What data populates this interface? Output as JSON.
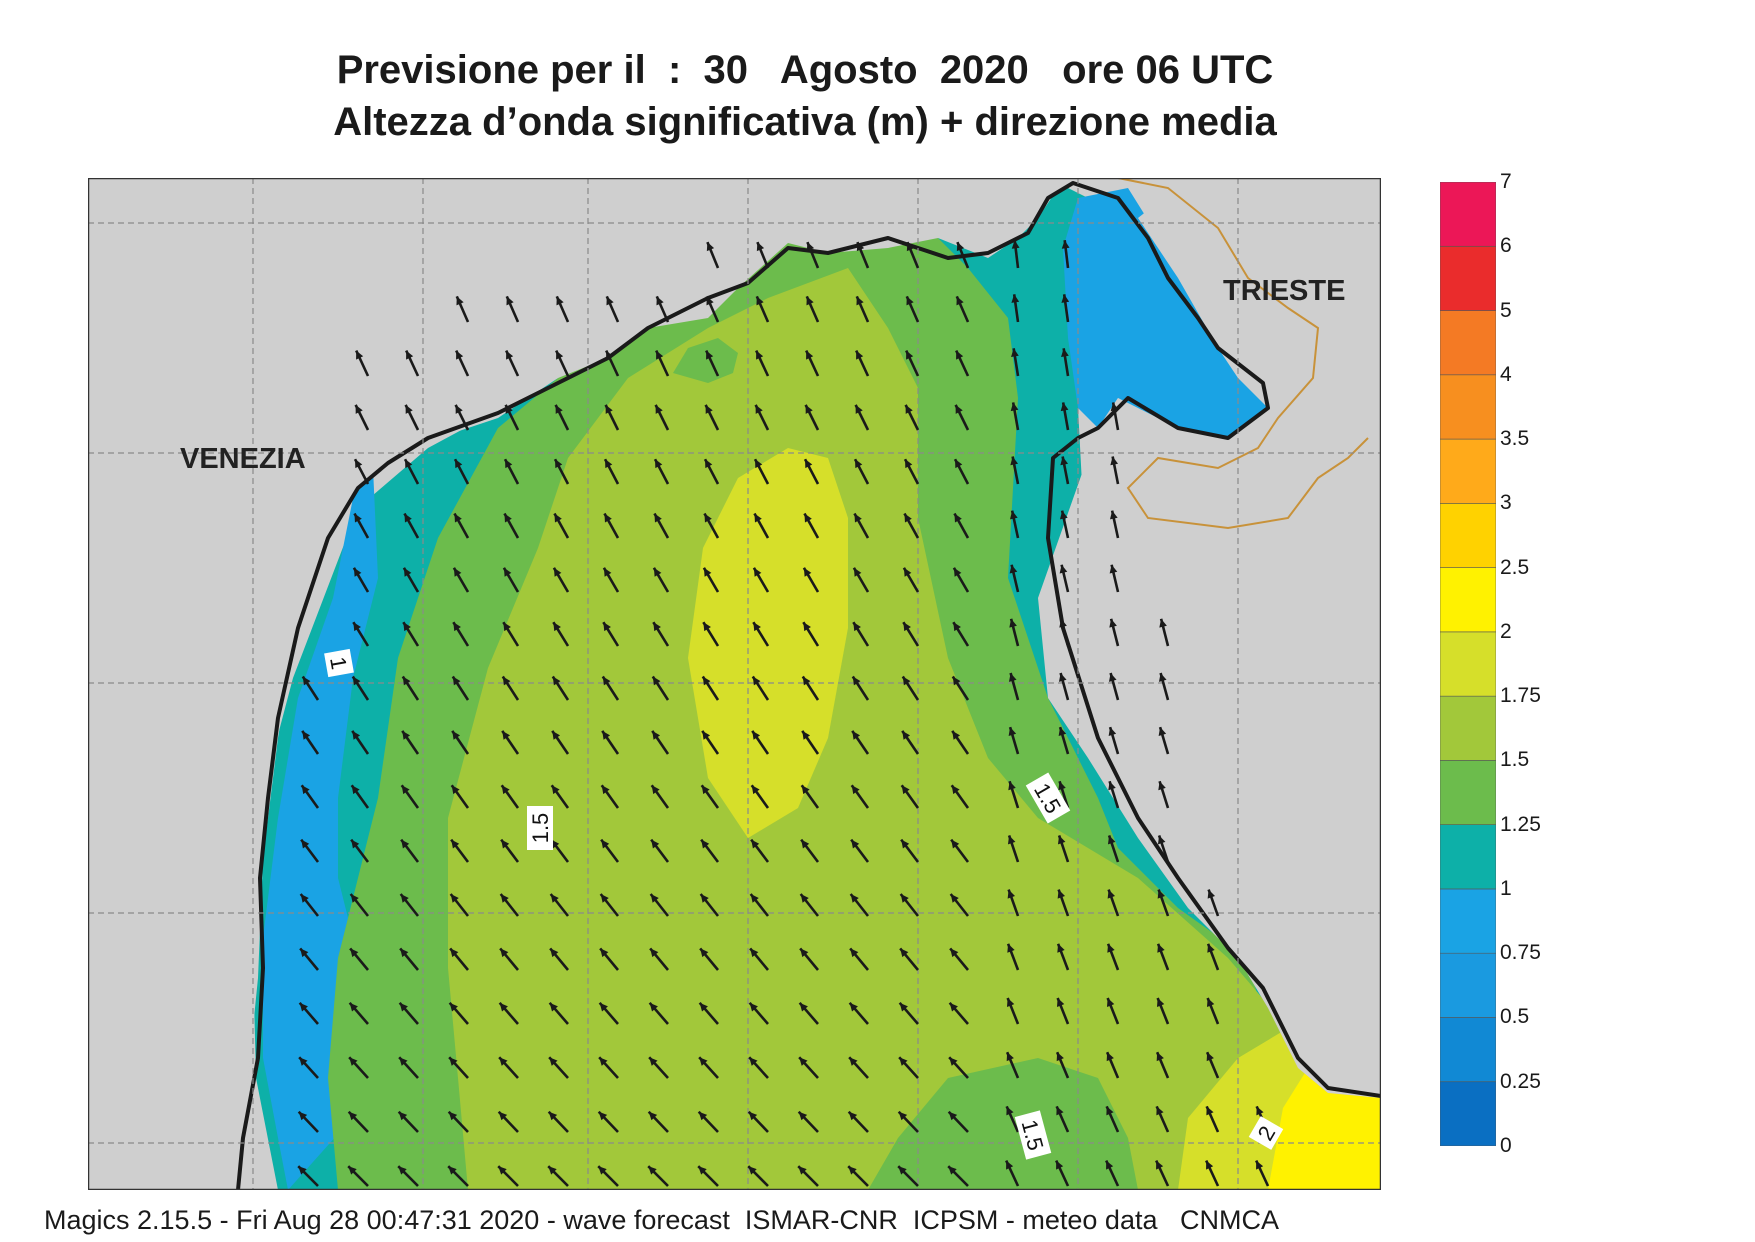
{
  "title": {
    "line1": "Previsione per il  :  30   Agosto  2020   ore 06 UTC",
    "line2": "Altezza d’onda significativa (m) + direzione media"
  },
  "map": {
    "cities": [
      "VENEZIA",
      "TRIESTE"
    ],
    "contour_labels": [
      "1",
      "1.5",
      "1.5",
      "1.5",
      "2"
    ],
    "land_color": "#cfcfcf",
    "coast_color": "#1a1a1a",
    "border_color": "#c8923a",
    "arrow_color": "#1a1a1a",
    "grid_color": "#8a8a8a"
  },
  "legend": {
    "levels": [
      "0",
      "0.25",
      "0.5",
      "0.75",
      "1",
      "1.25",
      "1.5",
      "1.75",
      "2",
      "2.5",
      "3",
      "3.5",
      "4",
      "5",
      "6",
      "7"
    ],
    "colors": [
      "#0a6fc2",
      "#1189d4",
      "#1a9ae0",
      "#1aa3e4",
      "#0db0a8",
      "#6cbc4c",
      "#a2c83a",
      "#d6df2a",
      "#fff200",
      "#ffd200",
      "#ffaa1a",
      "#f78f1f",
      "#f47a24",
      "#ea2c2c",
      "#ec1757"
    ]
  },
  "footer": "Magics 2.15.5 - Fri Aug 28 00:47:31 2020 - wave forecast  ISMAR-CNR  ICPSM - meteo data   CNMCA"
}
